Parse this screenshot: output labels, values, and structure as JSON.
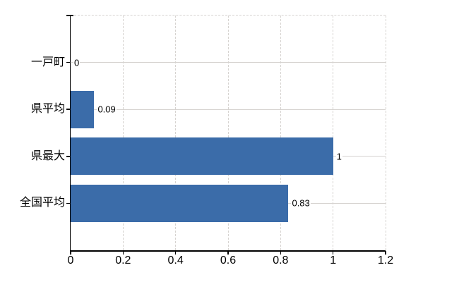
{
  "chart_data": {
    "type": "bar",
    "orientation": "horizontal",
    "title": "",
    "legend": "none",
    "categories": [
      "一戸町",
      "県平均",
      "県最大",
      "全国平均"
    ],
    "values": [
      0,
      0.09,
      1,
      0.83
    ],
    "data_labels": [
      "0",
      "0.09",
      "1",
      "0.83"
    ],
    "x_ticks": [
      0,
      0.2,
      0.4,
      0.6,
      0.8,
      1,
      1.2
    ],
    "x_tick_labels": [
      "0",
      "0.2",
      "0.4",
      "0.6",
      "0.8",
      "1",
      "1.2"
    ],
    "xlim": [
      0,
      1.2
    ],
    "grid": {
      "vertical_gridlines": "dashed",
      "horizontal_gridlines": "solid at category centers",
      "top_border": "dashed",
      "right_border": "dashed"
    },
    "colors": {
      "bar": "#3B6CA9",
      "grid": "#D6D3D0",
      "axis": "#000000",
      "text": "#000000",
      "background": "#FFFFFF"
    }
  }
}
